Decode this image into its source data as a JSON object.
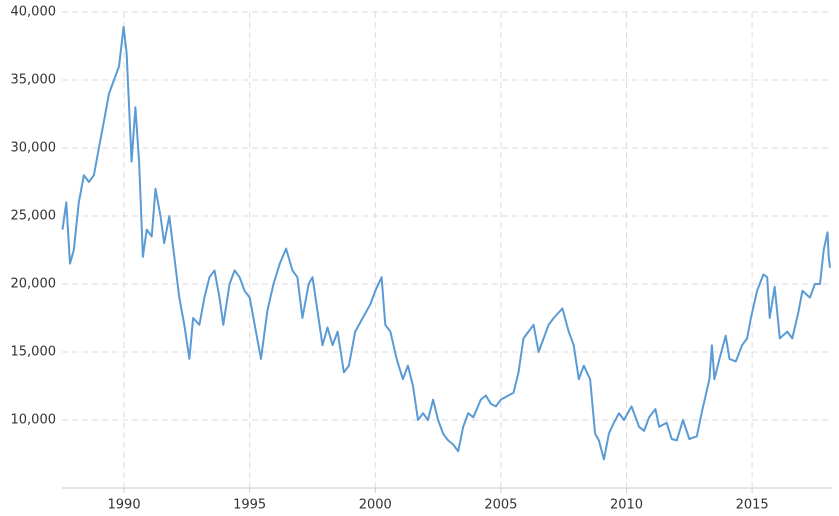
{
  "chart_data": {
    "type": "line",
    "x": [
      1987.55,
      1987.7,
      1987.85,
      1988.0,
      1988.2,
      1988.4,
      1988.6,
      1988.8,
      1989.0,
      1989.2,
      1989.4,
      1989.6,
      1989.8,
      1989.98,
      1990.1,
      1990.2,
      1990.3,
      1990.45,
      1990.6,
      1990.75,
      1990.9,
      1991.1,
      1991.25,
      1991.45,
      1991.6,
      1991.8,
      1992.0,
      1992.2,
      1992.4,
      1992.6,
      1992.75,
      1993.0,
      1993.2,
      1993.4,
      1993.6,
      1993.8,
      1993.95,
      1994.2,
      1994.4,
      1994.6,
      1994.8,
      1995.0,
      1995.3,
      1995.45,
      1995.7,
      1995.95,
      1996.2,
      1996.45,
      1996.7,
      1996.9,
      1997.1,
      1997.35,
      1997.5,
      1997.7,
      1997.9,
      1998.1,
      1998.3,
      1998.5,
      1998.75,
      1998.95,
      1999.2,
      1999.5,
      1999.8,
      2000.0,
      2000.25,
      2000.4,
      2000.6,
      2000.85,
      2001.1,
      2001.3,
      2001.5,
      2001.7,
      2001.9,
      2002.1,
      2002.3,
      2002.5,
      2002.7,
      2002.9,
      2003.1,
      2003.3,
      2003.5,
      2003.7,
      2003.9,
      2004.2,
      2004.4,
      2004.6,
      2004.8,
      2005.0,
      2005.3,
      2005.5,
      2005.7,
      2005.9,
      2006.1,
      2006.3,
      2006.5,
      2006.7,
      2006.9,
      2007.1,
      2007.45,
      2007.7,
      2007.9,
      2008.1,
      2008.3,
      2008.55,
      2008.75,
      2008.9,
      2009.1,
      2009.3,
      2009.5,
      2009.7,
      2009.9,
      2010.2,
      2010.5,
      2010.7,
      2010.9,
      2011.15,
      2011.3,
      2011.6,
      2011.8,
      2012.0,
      2012.25,
      2012.5,
      2012.8,
      2013.0,
      2013.3,
      2013.4,
      2013.5,
      2013.7,
      2013.95,
      2014.1,
      2014.35,
      2014.6,
      2014.8,
      2014.95,
      2015.2,
      2015.45,
      2015.6,
      2015.7,
      2015.9,
      2016.1,
      2016.4,
      2016.6,
      2016.85,
      2017.0,
      2017.3,
      2017.5,
      2017.7,
      2017.85,
      2018.0,
      2018.05,
      2018.1
    ],
    "series": [
      {
        "color": "#5b9bd5",
        "values": [
          24000,
          26000,
          21500,
          22500,
          26000,
          28000,
          27500,
          28000,
          30000,
          32000,
          34000,
          35000,
          36000,
          38900,
          37000,
          33000,
          29000,
          33000,
          29000,
          22000,
          24000,
          23500,
          27000,
          25000,
          23000,
          25000,
          22000,
          19000,
          17000,
          14500,
          17500,
          17000,
          19000,
          20500,
          21000,
          19000,
          17000,
          20000,
          21000,
          20500,
          19500,
          19000,
          16000,
          14500,
          18000,
          20000,
          21500,
          22600,
          21000,
          20500,
          17500,
          20000,
          20500,
          18000,
          15500,
          16800,
          15500,
          16500,
          13500,
          14000,
          16500,
          17500,
          18500,
          19500,
          20500,
          17000,
          16500,
          14500,
          13000,
          14000,
          12500,
          10000,
          10500,
          10000,
          11500,
          10000,
          9000,
          8500,
          8200,
          7700,
          9500,
          10500,
          10200,
          11500,
          11800,
          11200,
          11000,
          11500,
          11800,
          12000,
          13500,
          16000,
          16500,
          17000,
          15000,
          16000,
          17000,
          17500,
          18200,
          16500,
          15500,
          13000,
          14000,
          13000,
          9000,
          8500,
          7100,
          9000,
          9800,
          10500,
          10000,
          11000,
          9500,
          9200,
          10200,
          10800,
          9500,
          9800,
          8600,
          8500,
          10000,
          8600,
          8800,
          10600,
          13000,
          15500,
          13000,
          14500,
          16200,
          14500,
          14300,
          15500,
          16000,
          17500,
          19500,
          20700,
          20500,
          17500,
          19800,
          16000,
          16500,
          16000,
          18000,
          19500,
          19000,
          20000,
          20000,
          22500,
          23800,
          22000,
          21200
        ]
      }
    ],
    "xlim": [
      1987.53,
      2018.1
    ],
    "xticks": [
      1990,
      1995,
      2000,
      2005,
      2010,
      2015
    ],
    "ylim": [
      5000,
      40000
    ],
    "yticks": [
      {
        "value": 10000,
        "label": "10,000"
      },
      {
        "value": 15000,
        "label": "15,000"
      },
      {
        "value": 20000,
        "label": "20,000"
      },
      {
        "value": 25000,
        "label": "25,000"
      },
      {
        "value": 30000,
        "label": "30,000"
      },
      {
        "value": 35000,
        "label": "35,000"
      },
      {
        "value": 40000,
        "label": "40,000"
      }
    ],
    "grid": true
  }
}
